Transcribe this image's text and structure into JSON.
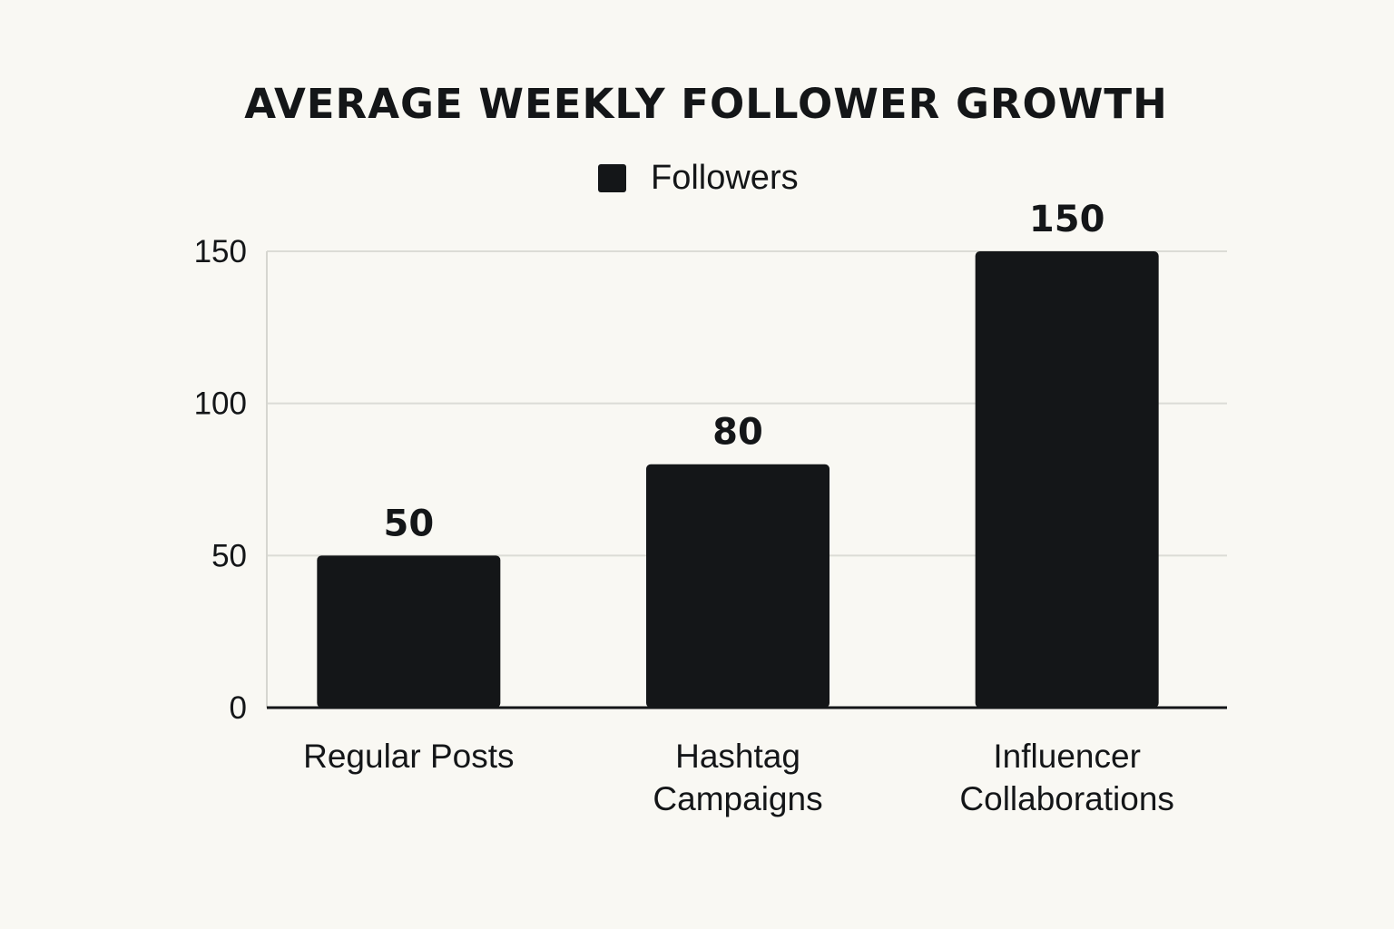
{
  "chart_data": {
    "type": "bar",
    "title": "AVERAGE WEEKLY FOLLOWER GROWTH",
    "legend": [
      {
        "name": "Followers",
        "color": "#141618"
      }
    ],
    "legend_position": "top-center",
    "categories": [
      [
        "Regular Posts"
      ],
      [
        "Hashtag",
        "Campaigns"
      ],
      [
        "Influencer",
        "Collaborations"
      ]
    ],
    "series": [
      {
        "name": "Followers",
        "values": [
          50,
          80,
          150
        ],
        "color": "#141618"
      }
    ],
    "data_labels": [
      "50",
      "80",
      "150"
    ],
    "yticks": [
      0,
      50,
      100,
      150
    ],
    "ylim": [
      0,
      150
    ],
    "grid": true,
    "xlabel": "",
    "ylabel": ""
  }
}
